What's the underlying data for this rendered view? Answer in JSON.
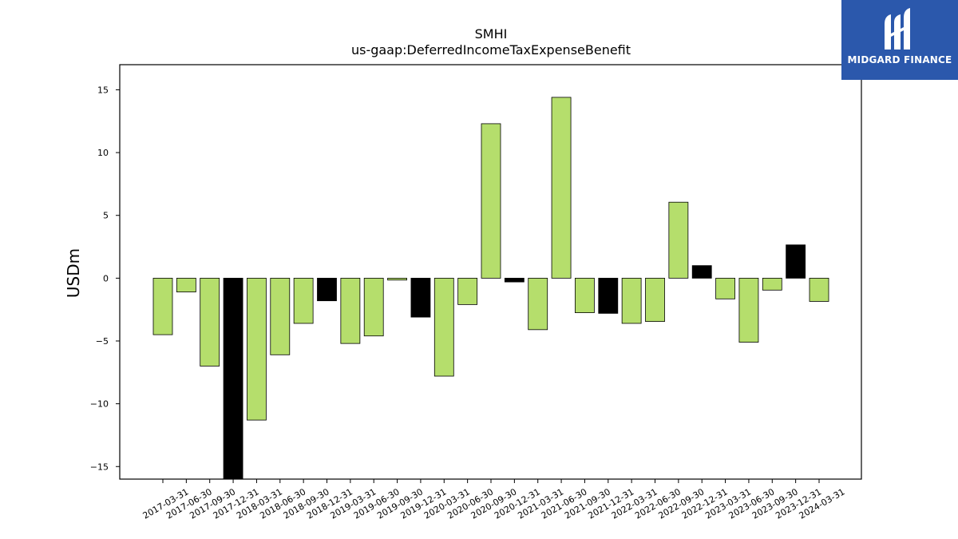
{
  "chart_data": {
    "type": "bar",
    "title": "SMHI",
    "subtitle": "us-gaap:DeferredIncomeTaxExpenseBenefit",
    "xlabel": "",
    "ylabel": "USDm",
    "ylim": [
      -16,
      17
    ],
    "yticks": [
      -15,
      -10,
      -5,
      0,
      5,
      10,
      15
    ],
    "grid": false,
    "categories": [
      "2017-03-31",
      "2017-06-30",
      "2017-09-30",
      "2017-12-31",
      "2018-03-31",
      "2018-06-30",
      "2018-09-30",
      "2018-12-31",
      "2019-03-31",
      "2019-06-30",
      "2019-09-30",
      "2019-12-31",
      "2020-03-31",
      "2020-06-30",
      "2020-09-30",
      "2020-12-31",
      "2021-03-31",
      "2021-06-30",
      "2021-09-30",
      "2021-12-31",
      "2022-03-31",
      "2022-06-30",
      "2022-09-30",
      "2022-12-31",
      "2023-03-31",
      "2023-06-30",
      "2023-09-30",
      "2023-12-31",
      "2024-03-31"
    ],
    "values": [
      -4.5,
      -1.1,
      -7.0,
      -16.0,
      -11.3,
      -6.1,
      -3.6,
      -1.8,
      -5.2,
      -4.6,
      -0.15,
      -3.1,
      -7.8,
      -2.1,
      12.3,
      -0.3,
      -4.1,
      14.4,
      -2.75,
      -2.8,
      -3.6,
      -3.45,
      6.05,
      1.0,
      -1.65,
      -5.1,
      -0.95,
      2.65,
      -1.85
    ],
    "quarter_end_flags": [
      false,
      false,
      false,
      true,
      false,
      false,
      false,
      true,
      false,
      false,
      false,
      true,
      false,
      false,
      false,
      true,
      false,
      false,
      false,
      true,
      false,
      false,
      false,
      true,
      false,
      false,
      false,
      true,
      false
    ],
    "colors": {
      "regular": "#b5de6c",
      "year_end": "#000000",
      "edge": "#000000"
    }
  },
  "logo": {
    "text": "MIDGARD FINANCE",
    "icon": "midgard-logo-icon",
    "background": "#2b58ac"
  }
}
